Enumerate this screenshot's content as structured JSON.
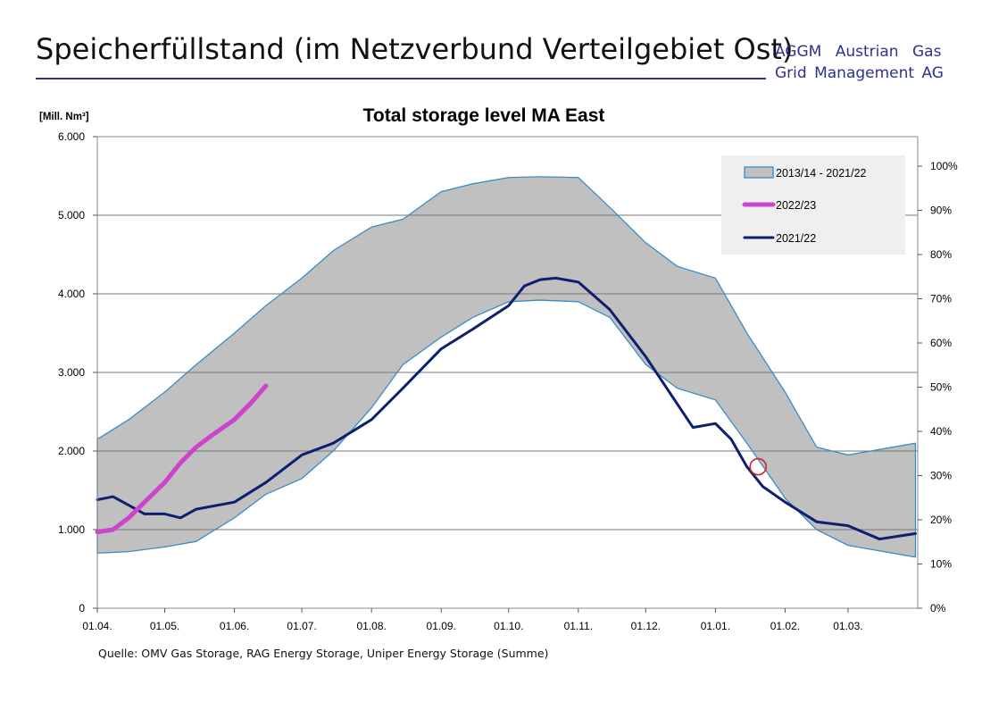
{
  "header": {
    "title": "Speicherfüllstand (im Netzverbund Verteilgebiet Ost)",
    "brand_line1": "AGGM Austrian Gas",
    "brand_line2": "Grid Management AG"
  },
  "footer": {
    "source": "Quelle: OMV Gas Storage, RAG Energy Storage, Uniper Energy Storage (Summe)"
  },
  "colors": {
    "band_fill": "#c0c0c0",
    "band_edge": "#3c8cc4",
    "series_2022_23": "#cc44cc",
    "series_2021_22": "#0d1f6e",
    "marker": "#d42020",
    "legend_bg": "#efefef",
    "grid": "#777777"
  },
  "chart_data": {
    "type": "area",
    "title": "Total storage level MA East",
    "ylabel": "[Mill. Nm³]",
    "xlabel": "",
    "ylim": [
      0,
      6000
    ],
    "y_ticks": [
      "0",
      "1.000",
      "2.000",
      "3.000",
      "4.000",
      "5.000",
      "6.000"
    ],
    "y2_ticks": [
      "0%",
      "10%",
      "20%",
      "30%",
      "40%",
      "50%",
      "60%",
      "70%",
      "80%",
      "90%",
      "100%"
    ],
    "x_ticks": [
      "01.04.",
      "01.05.",
      "01.06.",
      "01.07.",
      "01.08.",
      "01.09.",
      "01.10.",
      "01.11.",
      "01.12.",
      "01.01.",
      "01.02.",
      "01.03."
    ],
    "grid": "horizontal",
    "legend_position": "top-right",
    "legend": [
      "2013/14 - 2021/22",
      "2022/23",
      "2021/22"
    ],
    "band": {
      "name": "2013/14 - 2021/22",
      "x": [
        "01.04.",
        "15.04.",
        "01.05.",
        "15.05.",
        "01.06.",
        "15.06.",
        "01.07.",
        "15.07.",
        "01.08.",
        "15.08.",
        "01.09.",
        "15.09.",
        "01.10.",
        "15.10.",
        "01.11.",
        "15.11.",
        "01.12.",
        "15.12.",
        "01.01.",
        "15.01.",
        "01.02.",
        "15.02.",
        "01.03.",
        "31.03."
      ],
      "upper": [
        2150,
        2400,
        2750,
        3100,
        3500,
        3850,
        4200,
        4550,
        4850,
        4950,
        5300,
        5400,
        5480,
        5490,
        5480,
        5100,
        4650,
        4350,
        4200,
        3500,
        2750,
        2050,
        1950,
        2100
      ],
      "lower": [
        700,
        720,
        780,
        850,
        1150,
        1450,
        1650,
        2000,
        2550,
        3100,
        3450,
        3700,
        3900,
        3920,
        3900,
        3700,
        3100,
        2800,
        2650,
        2100,
        1400,
        1000,
        800,
        650
      ]
    },
    "series": [
      {
        "name": "2022/23",
        "x": [
          "01.04.",
          "08.04.",
          "15.04.",
          "22.04.",
          "01.05.",
          "08.05.",
          "15.05.",
          "22.05.",
          "01.06.",
          "08.06.",
          "15.06."
        ],
        "values": [
          970,
          1000,
          1150,
          1350,
          1600,
          1850,
          2050,
          2200,
          2400,
          2600,
          2830
        ]
      },
      {
        "name": "2021/22",
        "x": [
          "01.04.",
          "08.04.",
          "15.04.",
          "22.04.",
          "01.05.",
          "08.05.",
          "15.05.",
          "01.06.",
          "15.06.",
          "01.07.",
          "15.07.",
          "01.08.",
          "15.08.",
          "01.09.",
          "15.09.",
          "01.10.",
          "08.10.",
          "15.10.",
          "22.10.",
          "01.11.",
          "15.11.",
          "01.12.",
          "15.12.",
          "22.12.",
          "01.01.",
          "08.01.",
          "15.01.",
          "22.01.",
          "01.02.",
          "15.02.",
          "01.03.",
          "15.03.",
          "31.03."
        ],
        "values": [
          1380,
          1420,
          1310,
          1200,
          1200,
          1150,
          1260,
          1350,
          1600,
          1950,
          2100,
          2400,
          2800,
          3300,
          3550,
          3850,
          4100,
          4180,
          4200,
          4150,
          3800,
          3200,
          2600,
          2300,
          2350,
          2150,
          1800,
          1550,
          1350,
          1100,
          1050,
          880,
          950
        ]
      }
    ],
    "annotations": [
      {
        "type": "circle",
        "x": "20.01.",
        "y": 1800
      }
    ]
  }
}
